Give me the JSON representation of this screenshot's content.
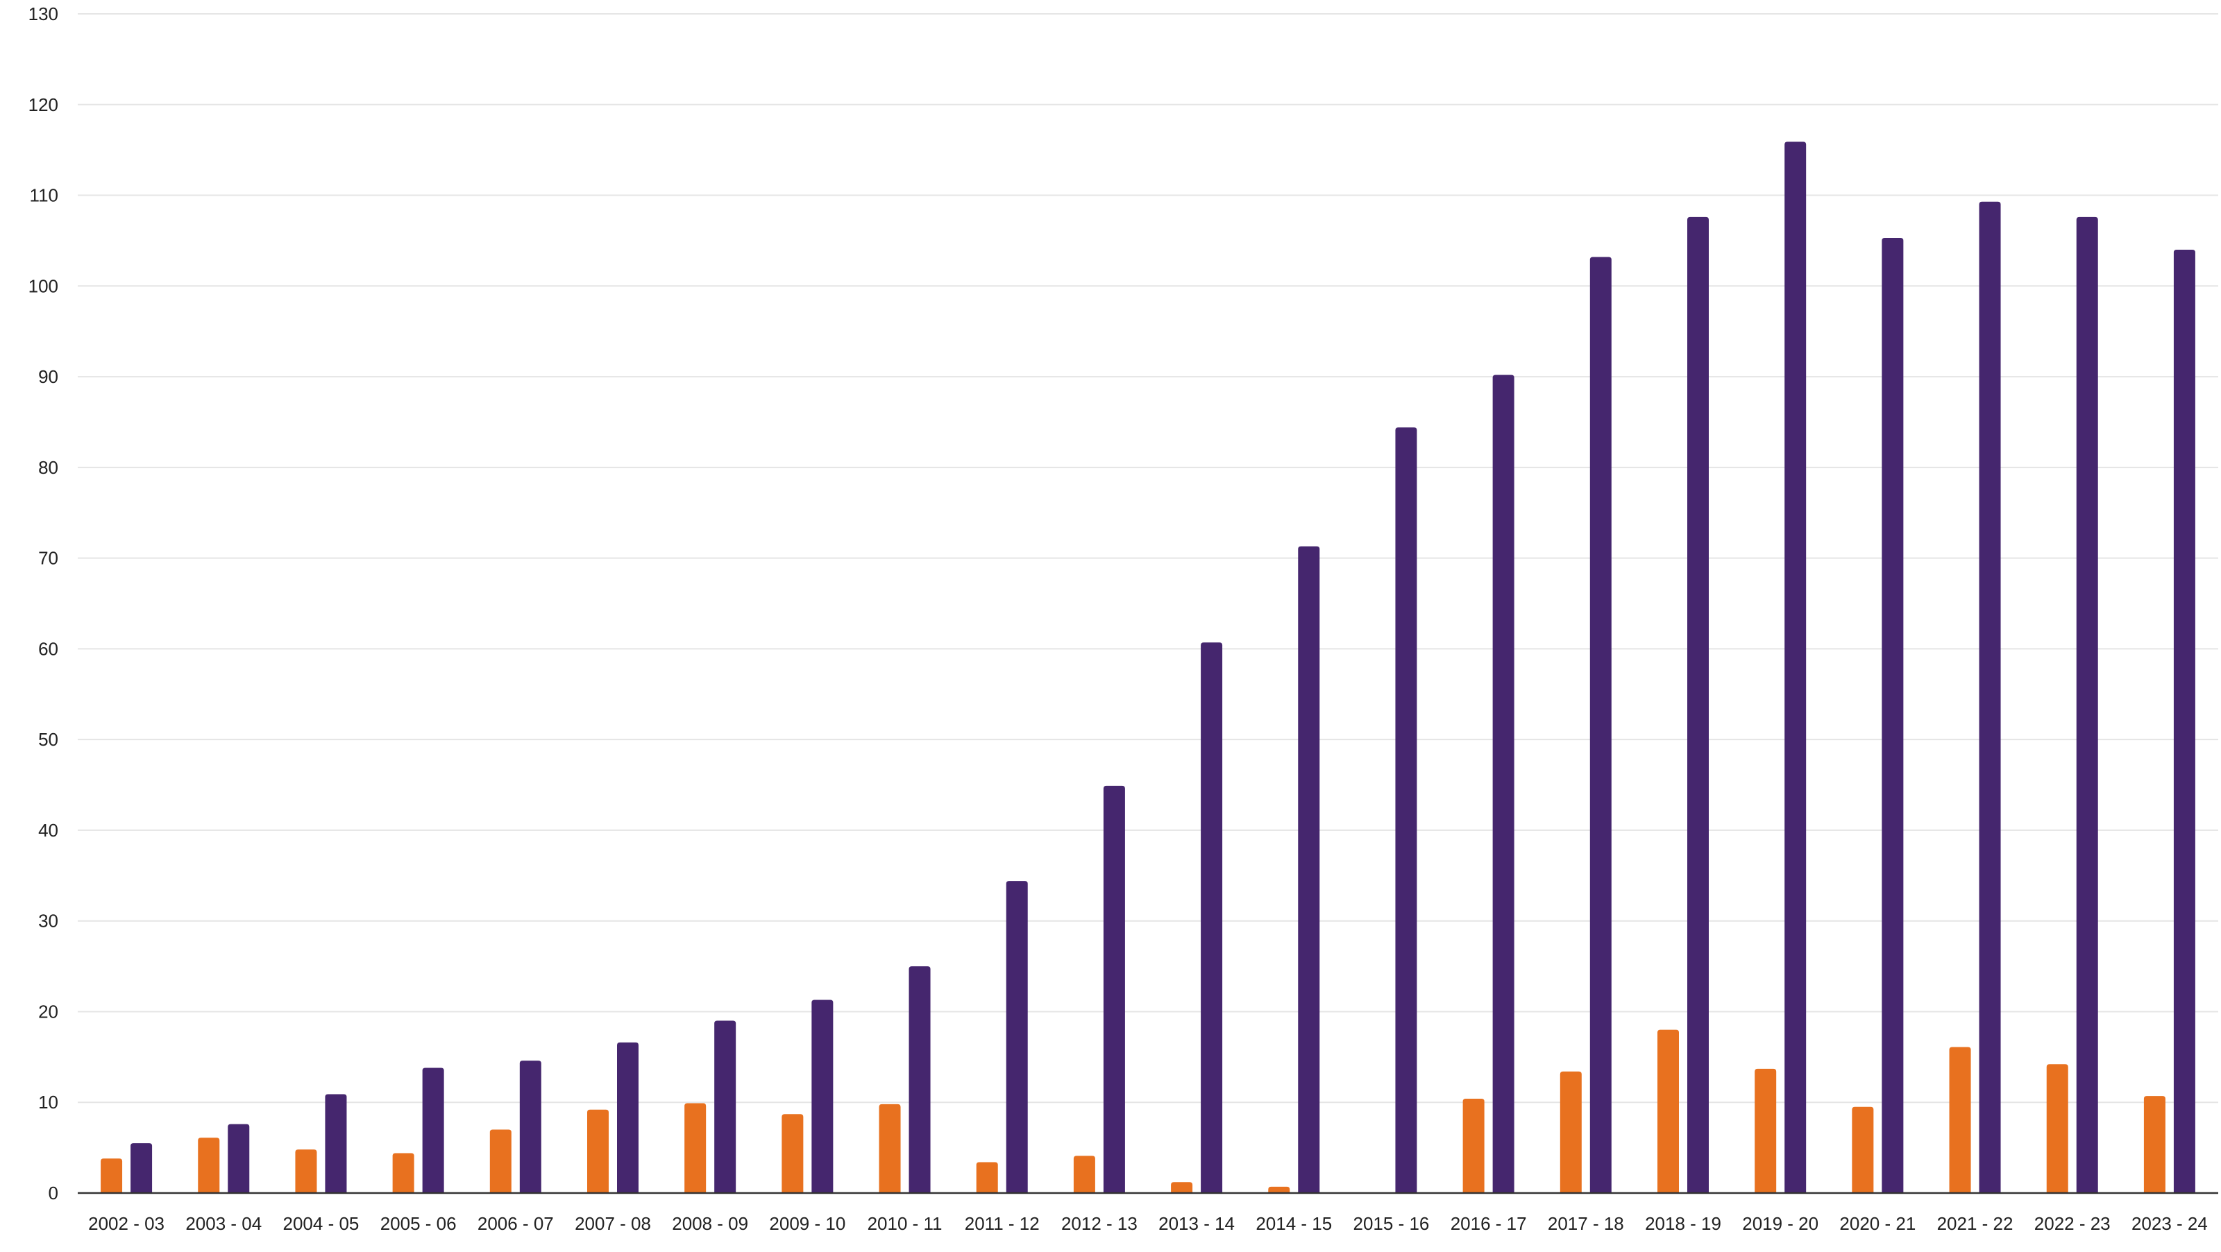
{
  "chart_data": {
    "type": "bar",
    "title": "",
    "xlabel": "",
    "ylabel": "",
    "ylim": [
      0,
      130
    ],
    "yticks": [
      0,
      10,
      20,
      30,
      40,
      50,
      60,
      70,
      80,
      90,
      100,
      110,
      120,
      130
    ],
    "grid": true,
    "legend": "none",
    "categories": [
      "2002 - 03",
      "2003 - 04",
      "2004 - 05",
      "2005 - 06",
      "2006 - 07",
      "2007 - 08",
      "2008 - 09",
      "2009 - 10",
      "2010 - 11",
      "2011 - 12",
      "2012 - 13",
      "2013 - 14",
      "2014 - 15",
      "2015 - 16",
      "2016 - 17",
      "2017 - 18",
      "2018 - 19",
      "2019 - 20",
      "2020 - 21",
      "2021 - 22",
      "2022 - 23",
      "2023 - 24"
    ],
    "series": [
      {
        "color": "#E8711F",
        "values": [
          3.8,
          6.1,
          4.8,
          4.4,
          7.0,
          9.2,
          9.9,
          8.7,
          9.8,
          3.4,
          4.1,
          1.2,
          0.7,
          0,
          10.4,
          13.4,
          18.0,
          13.7,
          9.5,
          16.1,
          14.2,
          10.7
        ]
      },
      {
        "color": "#45266E",
        "values": [
          5.5,
          7.6,
          10.9,
          13.8,
          14.6,
          16.6,
          19.0,
          21.3,
          25.0,
          34.4,
          44.9,
          60.7,
          71.3,
          84.4,
          90.2,
          103.2,
          107.6,
          115.9,
          105.3,
          109.3,
          107.6,
          104.0
        ]
      }
    ]
  }
}
